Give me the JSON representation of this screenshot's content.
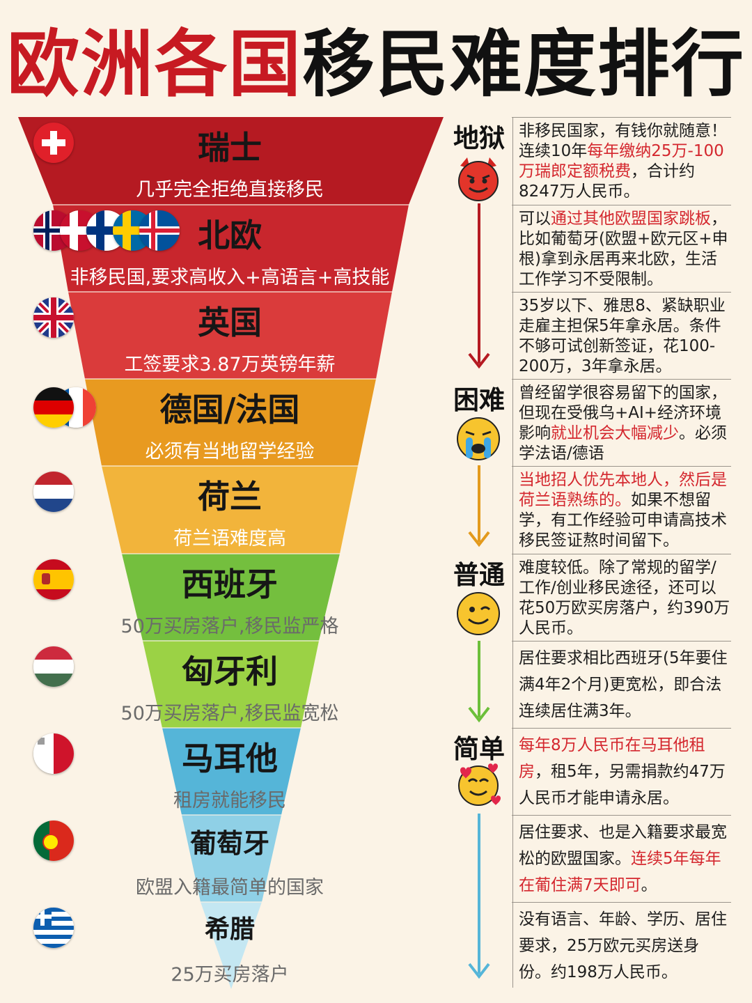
{
  "title": {
    "part1": "欧洲各国",
    "part2": "移民难度排行"
  },
  "colors": {
    "red_dark": "#b51a22",
    "red": "#c8262d",
    "red_light": "#da3b3b",
    "orange": "#e89a20",
    "yellow": "#f2b43b",
    "green": "#74bf3e",
    "green_light": "#9bd245",
    "cyan": "#55b5d8",
    "cyan_light": "#8fd0e6"
  },
  "levels": [
    {
      "label": "地狱",
      "emoji": "devil-emoji"
    },
    {
      "label": "困难",
      "emoji": "crying-emoji"
    },
    {
      "label": "普通",
      "emoji": "wink-emoji"
    },
    {
      "label": "简单",
      "emoji": "hearts-emoji"
    }
  ],
  "countries": [
    {
      "name": "瑞士",
      "sub": "几乎完全拒绝直接移民",
      "flag": "switzerland-flag",
      "desc": [
        {
          "t": "非移民国家，有钱你就随意！连续10年"
        },
        {
          "t": "每年缴纳25万-100万瑞郎定额税费",
          "hl": true
        },
        {
          "t": "，合计约8247万人民币。"
        }
      ]
    },
    {
      "name": "北欧",
      "sub": "非移民国,要求高收入+高语言+高技能",
      "flag": "nordic-flags",
      "desc": [
        {
          "t": "可以"
        },
        {
          "t": "通过其他欧盟国家跳板",
          "hl": true
        },
        {
          "t": "，比如葡萄牙(欧盟+欧元区+申根)拿到永居再来北欧，生活工作学习不受限制。"
        }
      ]
    },
    {
      "name": "英国",
      "sub": "工签要求3.87万英镑年薪",
      "flag": "uk-flag",
      "desc": [
        {
          "t": "35岁以下、雅思8、紧缺职业走雇主担保5年拿永居。条件不够可试创新签证，花100-200万，3年拿永居。"
        }
      ]
    },
    {
      "name": "德国/法国",
      "sub": "必须有当地留学经验",
      "flag": "germany-france-flags",
      "desc": [
        {
          "t": "曾经留学很容易留下的国家，但现在受俄乌+AI+经济环境影响"
        },
        {
          "t": "就业机会大幅减少",
          "hl": true
        },
        {
          "t": "。必须学法语/德语"
        }
      ]
    },
    {
      "name": "荷兰",
      "sub": "荷兰语难度高",
      "flag": "netherlands-flag",
      "desc": [
        {
          "t": "当地招人优先本地人，然后是荷兰语熟练的。",
          "hl": true
        },
        {
          "t": "如果不想留学，有工作经验可申请高技术移民签证熬时间留下。"
        }
      ]
    },
    {
      "name": "西班牙",
      "sub": "50万买房落户,移民监严格",
      "flag": "spain-flag",
      "desc": [
        {
          "t": "难度较低。除了常规的留学/工作/创业移民途径，还可以花50万欧买房落户，约390万人民币。"
        }
      ]
    },
    {
      "name": "匈牙利",
      "sub": "50万买房落户,移民监宽松",
      "flag": "hungary-flag",
      "desc": [
        {
          "t": "居住要求相比西班牙(5年要住满4年2个月)更宽松，即合法连续居住满3年。"
        }
      ]
    },
    {
      "name": "马耳他",
      "sub": "租房就能移民",
      "flag": "malta-flag",
      "desc": [
        {
          "t": "每年8万人民币在马耳他租房",
          "hl": true
        },
        {
          "t": "，租5年，另需捐款约47万人民币才能申请永居。"
        }
      ]
    },
    {
      "name": "葡萄牙",
      "sub": "欧盟入籍最简单的国家",
      "flag": "portugal-flag",
      "desc": [
        {
          "t": "居住要求、也是入籍要求最宽松的欧盟国家。"
        },
        {
          "t": "连续5年每年在葡住满7天即可",
          "hl": true
        },
        {
          "t": "。"
        }
      ]
    },
    {
      "name": "希腊",
      "sub": "25万买房落户",
      "flag": "greece-flag",
      "desc": [
        {
          "t": "没有语言、年龄、学历、居住要求，25万欧元买房送身份。约198万人民币。"
        }
      ]
    }
  ]
}
